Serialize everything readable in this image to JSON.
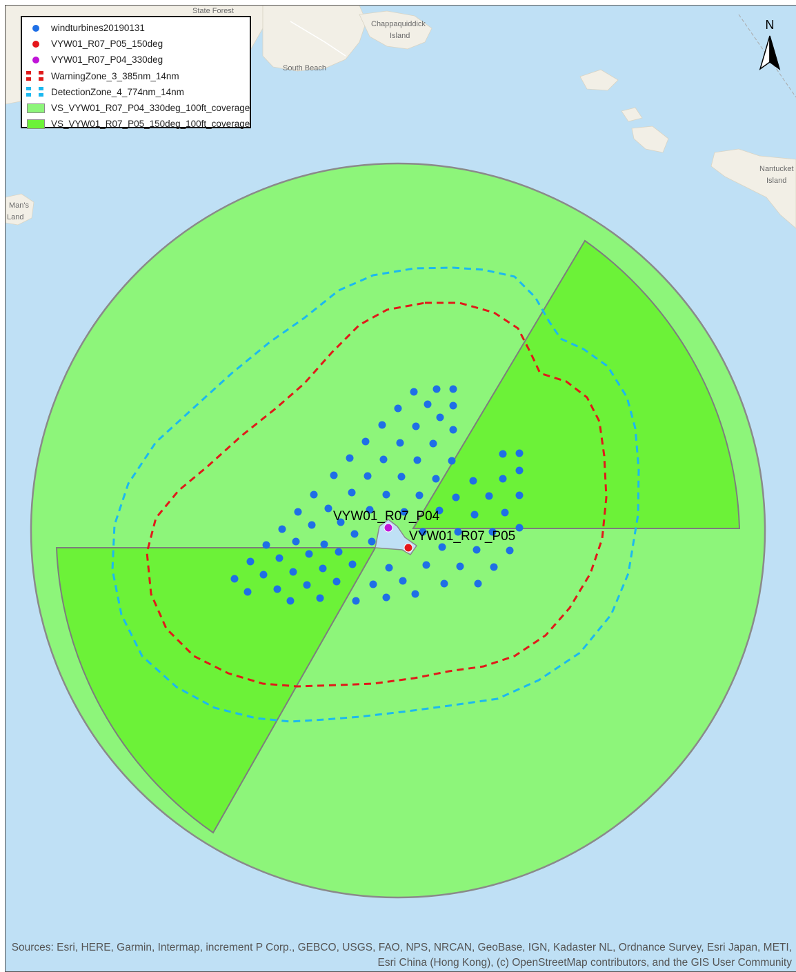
{
  "legend": {
    "items": [
      {
        "label": "windturbines20190131",
        "symbol": "dot",
        "color": "#1f6fe6"
      },
      {
        "label": "VYW01_R07_P05_150deg",
        "symbol": "dot",
        "color": "#e5161b"
      },
      {
        "label": "VYW01_R07_P04_330deg",
        "symbol": "dot",
        "color": "#c014d8"
      },
      {
        "label": "WarningZone_3_385nm_14nm",
        "symbol": "dashed",
        "color": "#e01a1a"
      },
      {
        "label": "DetectionZone_4_774nm_14nm",
        "symbol": "dashed",
        "color": "#1cb8ef"
      },
      {
        "label": "VS_VYW01_R07_P04_330deg_100ft_coverage",
        "symbol": "polygon",
        "color": "#8df57a"
      },
      {
        "label": "VS_VYW01_R07_P05_150deg_100ft_coverage",
        "symbol": "polygon",
        "color": "#6cf238"
      }
    ]
  },
  "place_labels": {
    "state_forest": "State Forest",
    "chappaquiddick": "Chappaquiddick",
    "chappaquiddick_island": "Island",
    "south_beach": "South Beach",
    "nantucket": "Nantucket",
    "nantucket_island": "Island",
    "mans": "Man's",
    "land": "Land"
  },
  "turbine_labels": {
    "p04": "VYW01_R07_P04",
    "p05": "VYW01_R07_P05"
  },
  "north_arrow": {
    "letter": "N"
  },
  "attribution": {
    "line1": "Sources: Esri, HERE, Garmin, Intermap, increment P Corp., GEBCO, USGS, FAO, NPS, NRCAN, GeoBase, IGN, Kadaster NL, Ordnance Survey, Esri Japan, METI,",
    "line2": "Esri China (Hong Kong), (c) OpenStreetMap contributors, and the GIS User Community"
  },
  "colors": {
    "water": "#bfe0f5",
    "land": "#f2efe6",
    "coverage_light": "#8df57a",
    "coverage_bright": "#6cf238",
    "turbine": "#1f6fe6",
    "warning_zone": "#e01a1a",
    "detection_zone": "#1cb8ef",
    "p05_point": "#e5161b",
    "p04_point": "#c014d8"
  },
  "turbine_count": 93
}
